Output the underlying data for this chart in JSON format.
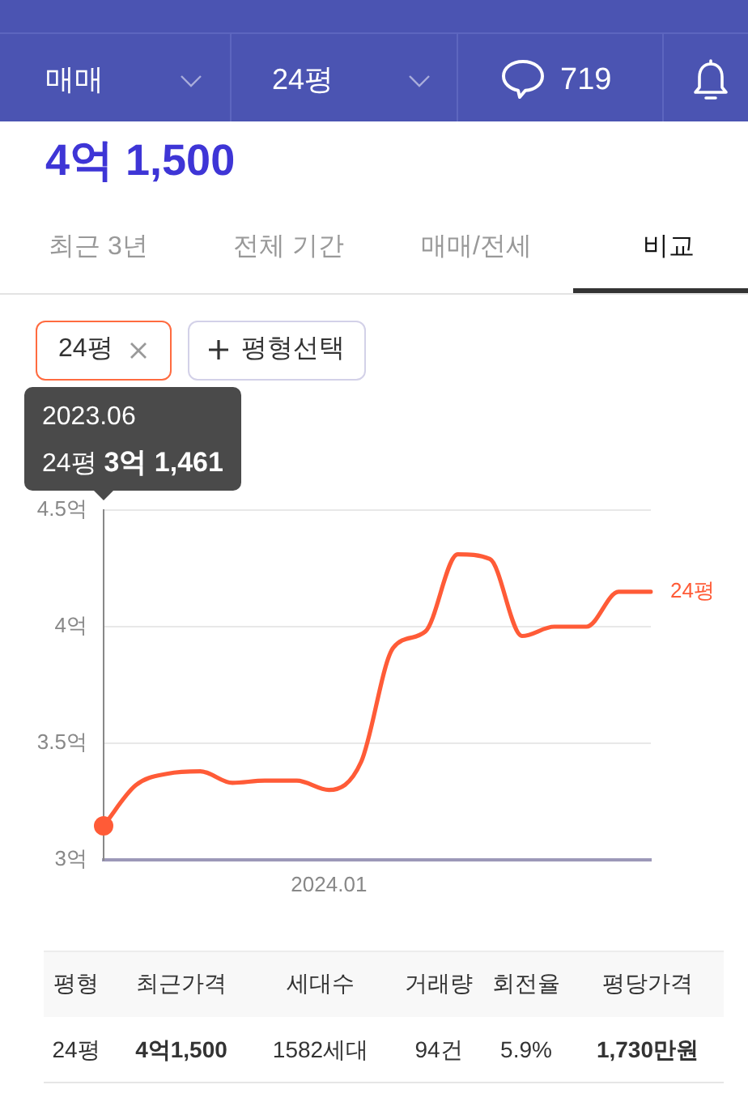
{
  "chart_data": {
    "type": "line",
    "title": "4억 1,500",
    "categories": [
      null,
      null,
      null,
      null,
      null,
      null,
      null,
      "2024.01",
      null,
      null,
      null,
      null,
      null,
      null,
      null,
      null,
      null,
      null
    ],
    "series": [
      {
        "name": "24평",
        "color": "#ff5b37",
        "values": [
          3.1461,
          3.32,
          3.37,
          3.38,
          3.33,
          3.34,
          3.34,
          3.3,
          3.42,
          3.91,
          3.98,
          4.31,
          4.29,
          3.96,
          4.0,
          4.0,
          4.15,
          4.15
        ]
      }
    ],
    "ylim": [
      3,
      4.5
    ],
    "yticks": [
      {
        "value": 3,
        "label": "3억"
      },
      {
        "value": 3.5,
        "label": "3.5억"
      },
      {
        "value": 4,
        "label": "4억"
      },
      {
        "value": 4.5,
        "label": "4.5억"
      }
    ],
    "grid": "y",
    "marker": "none",
    "annotations": [
      "매매",
      "24평",
      "719",
      "최근 3년",
      "전체 기간",
      "매매/전세",
      "비교",
      "24평",
      "평형선택",
      "2023.06",
      "24평 3억 1,461",
      "평형",
      "최근가격",
      "세대수",
      "거래량",
      "회전율",
      "평당가격",
      "24평",
      "4억1,500",
      "1582세대",
      "94건",
      "5.9%",
      "1,730만원"
    ]
  }
}
